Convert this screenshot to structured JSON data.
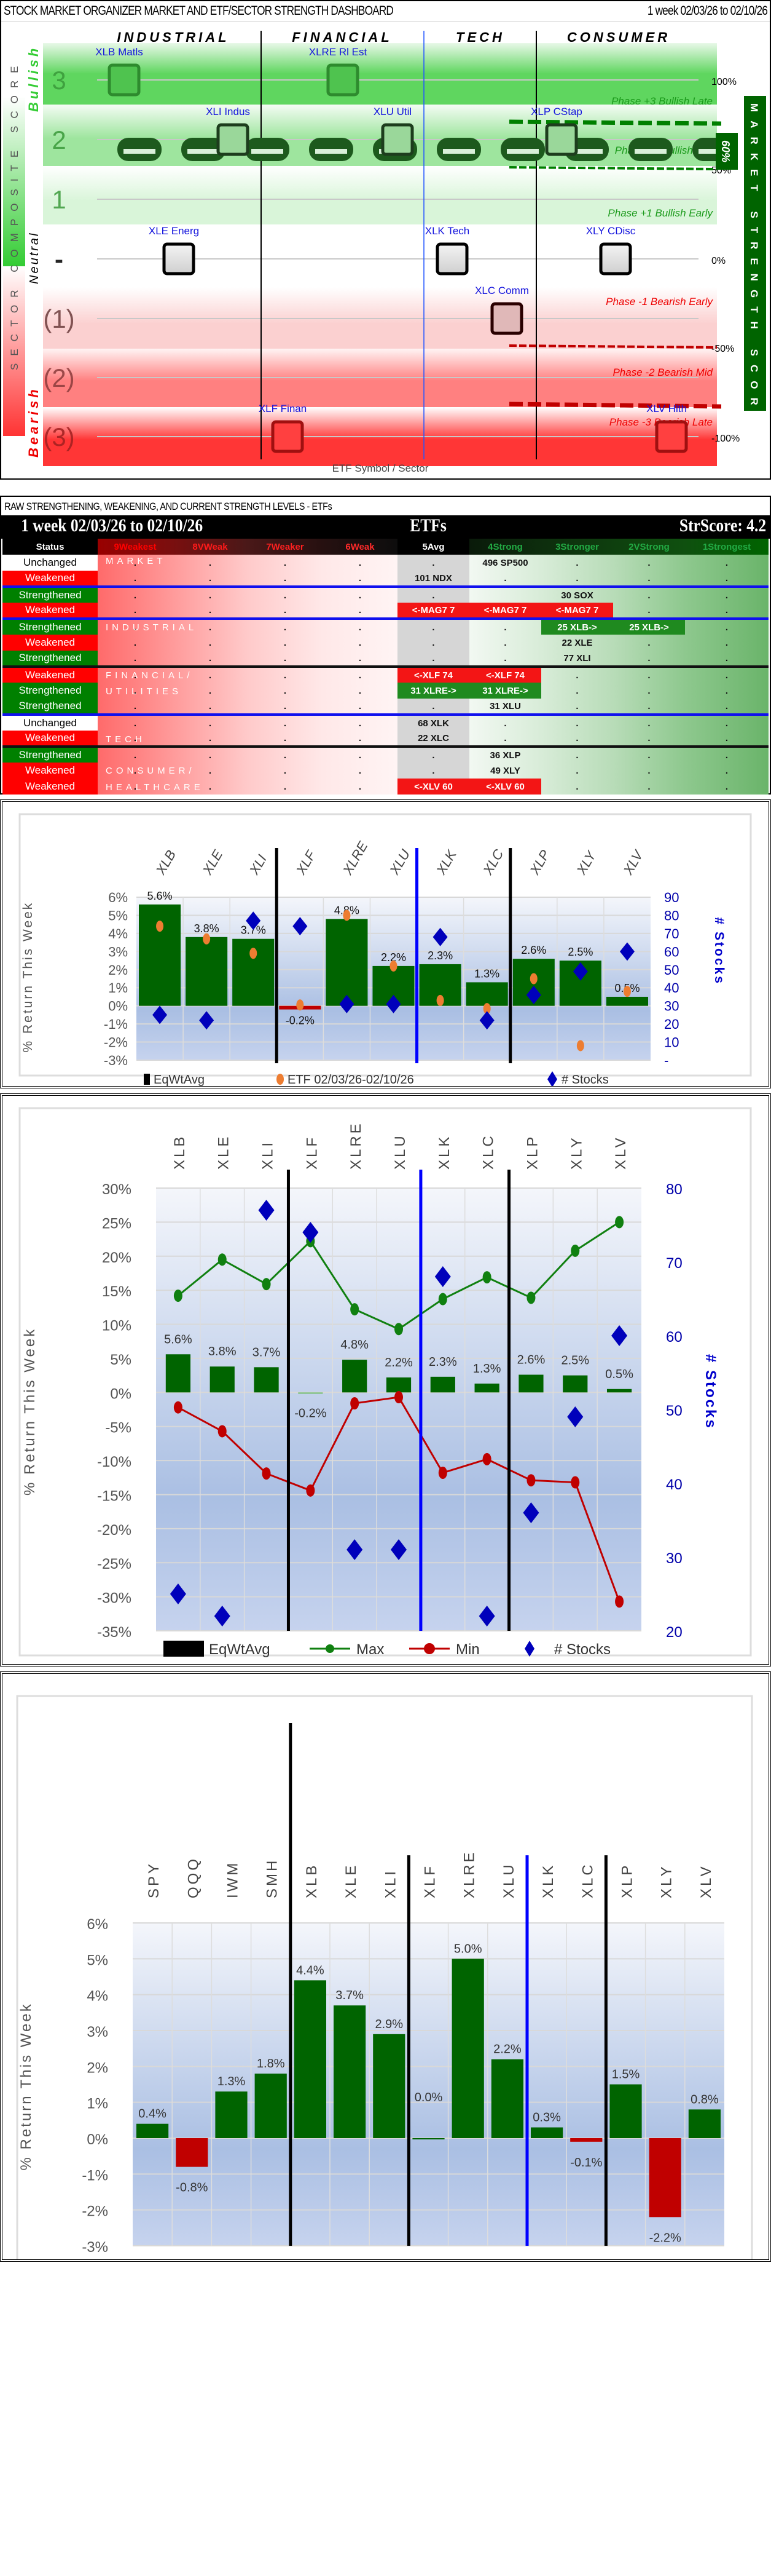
{
  "dashboard": {
    "title": "STOCK MARKET ORGANIZER MARKET AND ETF/SECTOR STRENGTH DASHBOARD",
    "period": "1 week 02/03/26 to 02/10/26",
    "sector_headers": [
      "INDUSTRIAL",
      "FINANCIAL",
      "TECH",
      "CONSUMER"
    ],
    "left_axis_title": "SECTOR COMPOSITE SCORE",
    "right_axis_title": "MARKET STRENGTH SCORE",
    "x_axis_title": "ETF Symbol / Sector",
    "zone_labels": {
      "bullish": "Bullish",
      "neutral": "Neutral",
      "bearish": "Bearish"
    },
    "row_labels": [
      "3",
      "2",
      "1",
      "-",
      "(1)",
      "(2)",
      "(3)"
    ],
    "pct_labels": [
      "100%",
      "50%",
      "0%",
      "-50%",
      "-100%"
    ],
    "phase_labels": [
      {
        "text": "Phase +3 Bullish Late",
        "color": "#1a9a1a"
      },
      {
        "text": "Phase +2 Bullish Mid",
        "color": "#1a9a1a"
      },
      {
        "text": "Phase +1 Bullish Early",
        "color": "#1a9a1a"
      },
      {
        "text": "Phase -1 Bearish Early",
        "color": "#ee0000"
      },
      {
        "text": "Phase -2 Bearish Mid",
        "color": "#ee0000"
      },
      {
        "text": "Phase -3 Bearish Late",
        "color": "#ee0000"
      }
    ],
    "market_strength_pct": 60,
    "market_strength_label": "60%",
    "etfs": [
      {
        "symbol": "XLB Matls",
        "score": 3
      },
      {
        "symbol": "XLRE Rl Est",
        "score": 3
      },
      {
        "symbol": "XLI Indus",
        "score": 2
      },
      {
        "symbol": "XLU Util",
        "score": 2
      },
      {
        "symbol": "XLP CStap",
        "score": 2
      },
      {
        "symbol": "XLE Energ",
        "score": 0
      },
      {
        "symbol": "XLK Tech",
        "score": 0
      },
      {
        "symbol": "XLY CDisc",
        "score": 0
      },
      {
        "symbol": "XLC Comm",
        "score": -1
      },
      {
        "symbol": "XLF Finan",
        "score": -3
      },
      {
        "symbol": "XLV Hlth",
        "score": -3
      }
    ]
  },
  "strength_table": {
    "caption": "RAW STRENGTHENING, WEAKENING, AND CURRENT STRENGTH LEVELS - ETFs",
    "period": "1 week 02/03/26 to 02/10/26",
    "center_title": "ETFs",
    "score": "StrScore: 4.2",
    "columns": [
      "Status",
      "9Weakest",
      "8VWeak",
      "7Weaker",
      "6Weak",
      "5Avg",
      "4Strong",
      "3Stronger",
      "2VStrong",
      "1Strongest"
    ],
    "groups": [
      "MARKET",
      "INDUSTRIAL",
      "FINANCIAL/",
      "UTILITIES",
      "TECH",
      "CONSUMER/",
      "HEALTHCARE"
    ],
    "rows": [
      {
        "status": "Unchanged",
        "cells": [
          ".",
          ".",
          ".",
          ".",
          ".",
          "496 SP500",
          ".",
          ".",
          "."
        ]
      },
      {
        "status": "Weakened",
        "cells": [
          ".",
          ".",
          ".",
          ".",
          "101 NDX",
          ".",
          ".",
          ".",
          "."
        ]
      },
      {
        "status": "Strengthened",
        "cells": [
          ".",
          ".",
          ".",
          ".",
          ".",
          "",
          "30 SOX",
          ".",
          "."
        ]
      },
      {
        "status": "Weakened",
        "cells": [
          ".",
          ".",
          ".",
          ".",
          "<-MAG7 7",
          "<-MAG7 7",
          "<-MAG7 7",
          ".",
          "."
        ]
      },
      {
        "status": "Strengthened",
        "cells": [
          ".",
          ".",
          ".",
          ".",
          ".",
          ".",
          "25 XLB->",
          "25 XLB->",
          "."
        ]
      },
      {
        "status": "Weakened",
        "cells": [
          ".",
          ".",
          ".",
          ".",
          ".",
          ".",
          "22 XLE",
          ".",
          "."
        ]
      },
      {
        "status": "Strengthened",
        "cells": [
          ".",
          ".",
          ".",
          ".",
          ".",
          ".",
          "77 XLI",
          ".",
          "."
        ]
      },
      {
        "status": "Weakened",
        "cells": [
          ".",
          ".",
          ".",
          ".",
          "<-XLF 74",
          "<-XLF 74",
          ".",
          ".",
          "."
        ]
      },
      {
        "status": "Strengthened",
        "cells": [
          ".",
          ".",
          ".",
          ".",
          "31 XLRE->",
          "31 XLRE->",
          ".",
          ".",
          "."
        ]
      },
      {
        "status": "Strengthened",
        "cells": [
          ".",
          ".",
          ".",
          ".",
          ".",
          "31 XLU",
          ".",
          ".",
          "."
        ]
      },
      {
        "status": "Unchanged",
        "cells": [
          ".",
          ".",
          ".",
          ".",
          "68 XLK",
          ".",
          ".",
          ".",
          "."
        ]
      },
      {
        "status": "Weakened",
        "cells": [
          ".",
          ".",
          ".",
          ".",
          "22 XLC",
          ".",
          ".",
          ".",
          "."
        ]
      },
      {
        "status": "Strengthened",
        "cells": [
          ".",
          ".",
          ".",
          ".",
          ".",
          "36 XLP",
          ".",
          ".",
          "."
        ]
      },
      {
        "status": "Weakened",
        "cells": [
          ".",
          ".",
          ".",
          ".",
          ".",
          "49 XLY",
          ".",
          ".",
          "."
        ]
      },
      {
        "status": "Weakened",
        "cells": [
          ".",
          ".",
          ".",
          ".",
          "<-XLV 60",
          "<-XLV 60",
          ".",
          ".",
          "."
        ]
      }
    ],
    "status_colors": {
      "Unchanged": "#ffffff",
      "Weakened": "#ff0000",
      "Strengthened": "#008000"
    }
  },
  "chart_data": [
    {
      "type": "bar",
      "title": "",
      "categories": [
        "XLB",
        "XLE",
        "XLI",
        "XLF",
        "XLRE",
        "XLU",
        "XLK",
        "XLC",
        "XLP",
        "XLY",
        "XLV"
      ],
      "series": [
        {
          "name": "EqWtAvg",
          "type": "bar",
          "values": [
            5.6,
            3.8,
            3.7,
            -0.2,
            4.8,
            2.2,
            2.3,
            1.3,
            2.6,
            2.5,
            0.5
          ],
          "labels": [
            "5.6%",
            "3.8%",
            "3.7%",
            "-0.2%",
            "4.8%",
            "2.2%",
            "2.3%",
            "1.3%",
            "2.6%",
            "2.5%",
            "0.5%"
          ]
        },
        {
          "name": "ETF 02/03/26-02/10/26",
          "type": "scatter",
          "values": [
            4.4,
            3.7,
            2.9,
            0.05,
            5.0,
            2.2,
            0.3,
            -0.15,
            1.5,
            -2.2,
            0.8
          ]
        },
        {
          "name": "# Stocks",
          "type": "scatter",
          "axis": "right",
          "values": [
            25,
            22,
            77,
            74,
            31,
            31,
            68,
            22,
            36,
            49,
            60
          ]
        }
      ],
      "xlabel": "",
      "ylabel": "% Return This Week",
      "y2label": "# Stocks",
      "ylim": [
        -3,
        6
      ],
      "y2lim": [
        0,
        90
      ],
      "yticks": [
        "6%",
        "5%",
        "4%",
        "3%",
        "2%",
        "1%",
        "0%",
        "-1%",
        "-2%",
        "-3%"
      ],
      "y2ticks": [
        "90",
        "80",
        "70",
        "60",
        "50",
        "40",
        "30",
        "20",
        "10",
        "-"
      ],
      "legend": [
        "EqWtAvg",
        "ETF 02/03/26-02/10/26",
        "# Stocks"
      ],
      "legend_position": "bottom",
      "separators_after": [
        "XLI",
        "XLU",
        "XLC"
      ],
      "grid": true
    },
    {
      "type": "line",
      "title": "",
      "categories": [
        "XLB",
        "XLE",
        "XLI",
        "XLF",
        "XLRE",
        "XLU",
        "XLK",
        "XLC",
        "XLP",
        "XLY",
        "XLV"
      ],
      "series": [
        {
          "name": "EqWtAvg",
          "type": "bar",
          "values": [
            5.6,
            3.8,
            3.7,
            -0.2,
            4.8,
            2.2,
            2.3,
            1.3,
            2.6,
            2.5,
            0.5
          ],
          "labels": [
            "5.6%",
            "3.8%",
            "3.7%",
            "-0.2%",
            "4.8%",
            "2.2%",
            "2.3%",
            "1.3%",
            "2.6%",
            "2.5%",
            "0.5%"
          ]
        },
        {
          "name": "Max",
          "type": "line",
          "values": [
            14.2,
            19.5,
            15.9,
            22.2,
            12.2,
            9.3,
            13.7,
            16.9,
            13.9,
            20.8,
            25.0
          ]
        },
        {
          "name": "Min",
          "type": "line",
          "values": [
            -2.2,
            -5.7,
            -11.9,
            -14.4,
            -1.6,
            -0.7,
            -11.8,
            -9.8,
            -12.9,
            -13.2,
            -30.7
          ]
        },
        {
          "name": "# Stocks",
          "type": "scatter",
          "axis": "right",
          "values": [
            25,
            22,
            77,
            74,
            31,
            31,
            68,
            22,
            36,
            49,
            60
          ]
        }
      ],
      "xlabel": "",
      "ylabel": "% Return This Week",
      "y2label": "# Stocks",
      "ylim": [
        -35,
        30
      ],
      "y2lim": [
        20,
        80
      ],
      "yticks": [
        "30%",
        "25%",
        "20%",
        "15%",
        "10%",
        "5%",
        "0%",
        "-5%",
        "-10%",
        "-15%",
        "-20%",
        "-25%",
        "-30%",
        "-35%"
      ],
      "y2ticks": [
        "80",
        "70",
        "60",
        "50",
        "40",
        "30",
        "20"
      ],
      "legend": [
        "EqWtAvg",
        "Max",
        "Min",
        "# Stocks"
      ],
      "legend_position": "bottom",
      "separators_after": [
        "XLI",
        "XLU",
        "XLC"
      ],
      "grid": true
    },
    {
      "type": "bar",
      "title": "",
      "categories": [
        "SPY",
        "QQQ",
        "IWM",
        "SMH",
        "XLB",
        "XLE",
        "XLI",
        "XLF",
        "XLRE",
        "XLU",
        "XLK",
        "XLC",
        "XLP",
        "XLY",
        "XLV"
      ],
      "series": [
        {
          "name": "% Return This Week",
          "values": [
            0.4,
            -0.8,
            1.3,
            1.8,
            4.4,
            3.7,
            2.9,
            0.0,
            5.0,
            2.2,
            0.3,
            -0.1,
            1.5,
            -2.2,
            0.8
          ],
          "labels": [
            "0.4%",
            "-0.8%",
            "1.3%",
            "1.8%",
            "4.4%",
            "3.7%",
            "2.9%",
            "0.0%",
            "5.0%",
            "2.2%",
            "0.3%",
            "-0.1%",
            "1.5%",
            "-2.2%",
            "0.8%"
          ]
        }
      ],
      "xlabel": "",
      "ylabel": "% Return This Week",
      "ylim": [
        -3,
        6
      ],
      "yticks": [
        "6%",
        "5%",
        "4%",
        "3%",
        "2%",
        "1%",
        "0%",
        "-1%",
        "-2%",
        "-3%"
      ],
      "separators_after": [
        "SMH",
        "XLI",
        "XLU",
        "XLC"
      ],
      "grid": true
    }
  ]
}
